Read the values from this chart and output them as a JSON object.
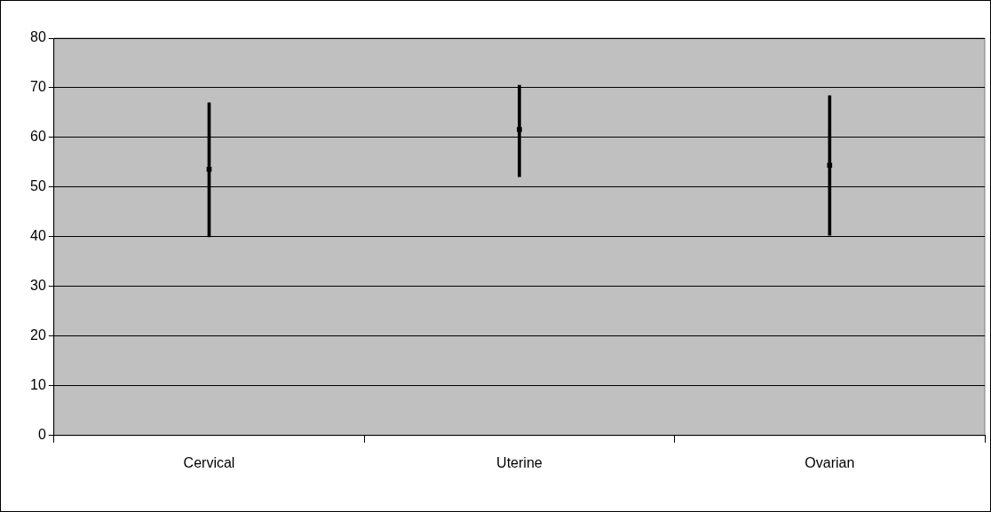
{
  "chart_data": {
    "type": "bar",
    "categories": [
      "Cervical",
      "Uterine",
      "Ovarian"
    ],
    "series": [
      {
        "type": "bar",
        "color": "#000000",
        "base": [
          40,
          52.1,
          40.3
        ],
        "values": [
          27,
          18.4,
          28.1
        ]
      },
      {
        "type": "scatter",
        "color": "#000000",
        "x": [
          "Cervical",
          "Uterine",
          "Ovarian"
        ],
        "values": [
          53.6,
          61.6,
          54.4
        ],
        "marker": "square"
      }
    ],
    "ylim": [
      0,
      80
    ],
    "yticks": [
      0,
      10,
      20,
      30,
      40,
      50,
      60,
      70,
      80
    ],
    "grid": "y"
  }
}
